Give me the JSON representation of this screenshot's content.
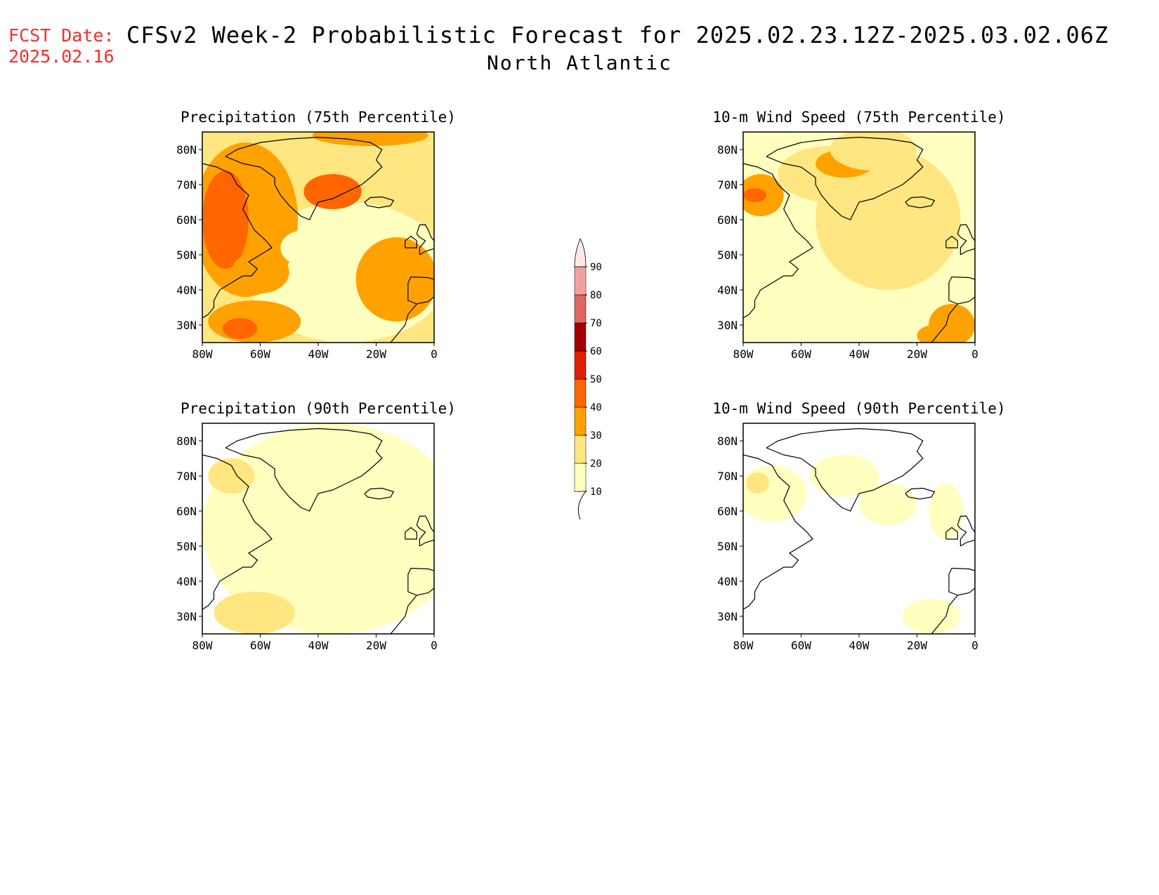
{
  "header": {
    "fcst_label": "FCST Date:",
    "fcst_date": "2025.02.16",
    "title": "CFSv2 Week-2 Probabilistic Forecast for 2025.02.23.12Z-2025.03.02.06Z",
    "region": "North Atlantic"
  },
  "axes": {
    "lat_ticks": [
      "80N",
      "70N",
      "60N",
      "50N",
      "40N",
      "30N"
    ],
    "lon_ticks": [
      "80W",
      "60W",
      "40W",
      "20W",
      "0"
    ],
    "lat_range": [
      25,
      85
    ],
    "lon_range": [
      -80,
      0
    ]
  },
  "panels": [
    {
      "title": "Precipitation (75th Percentile)",
      "intensity": "high",
      "dominant_range": "20-40"
    },
    {
      "title": "10-m Wind Speed (75th Percentile)",
      "intensity": "medium",
      "dominant_range": "10-30"
    },
    {
      "title": "Precipitation (90th Percentile)",
      "intensity": "low",
      "dominant_range": "10-20"
    },
    {
      "title": "10-m Wind Speed (90th Percentile)",
      "intensity": "low",
      "dominant_range": "<10-20"
    }
  ],
  "colorbar": {
    "labels": [
      "10",
      "20",
      "30",
      "40",
      "50",
      "60",
      "70",
      "80",
      "90"
    ],
    "colors": [
      "#ffffc0",
      "#ffe680",
      "#ffa200",
      "#ff6600",
      "#e01f00",
      "#a50000",
      "#e06666",
      "#f4a0a0",
      "#ffe8e8"
    ]
  }
}
